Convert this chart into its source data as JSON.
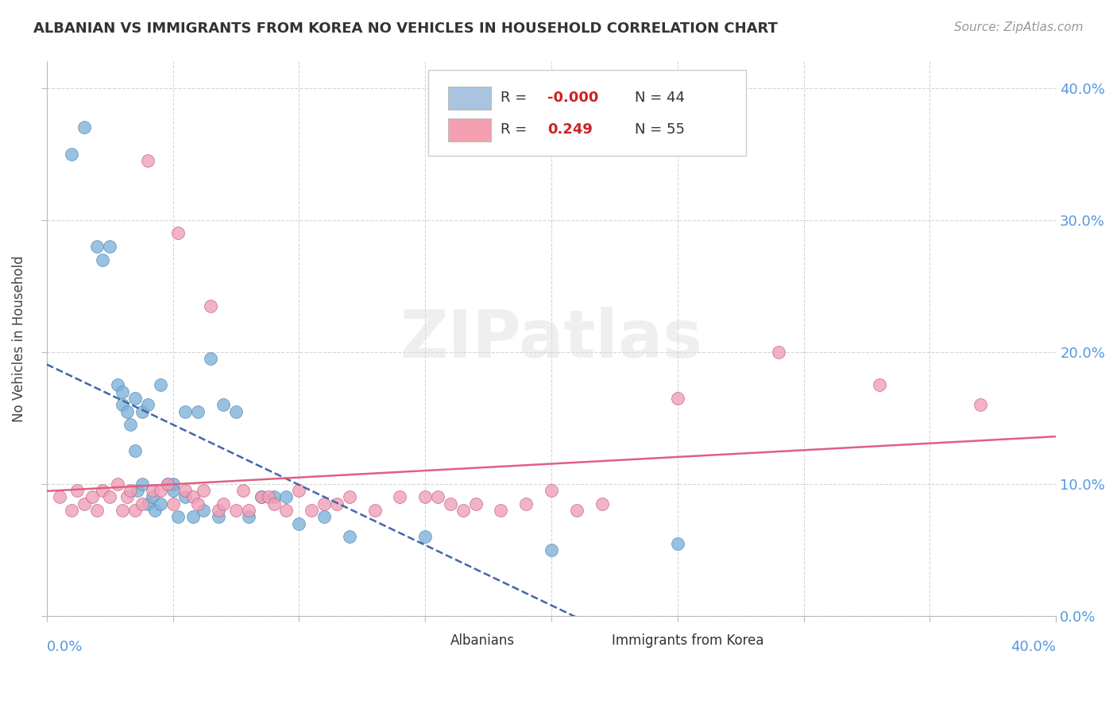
{
  "title": "ALBANIAN VS IMMIGRANTS FROM KOREA NO VEHICLES IN HOUSEHOLD CORRELATION CHART",
  "source": "Source: ZipAtlas.com",
  "ylabel": "No Vehicles in Household",
  "xlim": [
    0.0,
    0.4
  ],
  "ylim": [
    0.0,
    0.42
  ],
  "legend_entries": [
    {
      "label_r": "-0.000",
      "label_n": "N = 44",
      "color": "#a8c4e0"
    },
    {
      "label_r": "0.249",
      "label_n": "N = 55",
      "color": "#f4a0b0"
    }
  ],
  "albanians": {
    "color": "#7eb3d8",
    "edge_color": "#5588bb",
    "x": [
      0.01,
      0.015,
      0.02,
      0.022,
      0.025,
      0.028,
      0.03,
      0.03,
      0.032,
      0.033,
      0.035,
      0.035,
      0.036,
      0.038,
      0.038,
      0.04,
      0.04,
      0.042,
      0.043,
      0.045,
      0.045,
      0.048,
      0.05,
      0.05,
      0.052,
      0.055,
      0.055,
      0.058,
      0.06,
      0.062,
      0.065,
      0.068,
      0.07,
      0.075,
      0.08,
      0.085,
      0.09,
      0.095,
      0.1,
      0.11,
      0.12,
      0.15,
      0.2,
      0.25
    ],
    "y": [
      0.35,
      0.37,
      0.28,
      0.27,
      0.28,
      0.175,
      0.16,
      0.17,
      0.155,
      0.145,
      0.165,
      0.125,
      0.095,
      0.155,
      0.1,
      0.16,
      0.085,
      0.09,
      0.08,
      0.175,
      0.085,
      0.1,
      0.1,
      0.095,
      0.075,
      0.155,
      0.09,
      0.075,
      0.155,
      0.08,
      0.195,
      0.075,
      0.16,
      0.155,
      0.075,
      0.09,
      0.09,
      0.09,
      0.07,
      0.075,
      0.06,
      0.06,
      0.05,
      0.055
    ],
    "line_color": "#4466aa"
  },
  "korea": {
    "color": "#f0a0b8",
    "edge_color": "#c06080",
    "x": [
      0.005,
      0.01,
      0.012,
      0.015,
      0.018,
      0.02,
      0.022,
      0.025,
      0.028,
      0.03,
      0.032,
      0.033,
      0.035,
      0.038,
      0.04,
      0.042,
      0.045,
      0.048,
      0.05,
      0.052,
      0.055,
      0.058,
      0.06,
      0.062,
      0.065,
      0.068,
      0.07,
      0.075,
      0.078,
      0.08,
      0.085,
      0.088,
      0.09,
      0.095,
      0.1,
      0.105,
      0.11,
      0.115,
      0.12,
      0.13,
      0.14,
      0.15,
      0.155,
      0.16,
      0.165,
      0.17,
      0.18,
      0.19,
      0.2,
      0.21,
      0.22,
      0.25,
      0.29,
      0.33,
      0.37
    ],
    "y": [
      0.09,
      0.08,
      0.095,
      0.085,
      0.09,
      0.08,
      0.095,
      0.09,
      0.1,
      0.08,
      0.09,
      0.095,
      0.08,
      0.085,
      0.345,
      0.095,
      0.095,
      0.1,
      0.085,
      0.29,
      0.095,
      0.09,
      0.085,
      0.095,
      0.235,
      0.08,
      0.085,
      0.08,
      0.095,
      0.08,
      0.09,
      0.09,
      0.085,
      0.08,
      0.095,
      0.08,
      0.085,
      0.085,
      0.09,
      0.08,
      0.09,
      0.09,
      0.09,
      0.085,
      0.08,
      0.085,
      0.08,
      0.085,
      0.095,
      0.08,
      0.085,
      0.165,
      0.2,
      0.175,
      0.16
    ],
    "line_color": "#e06080"
  },
  "watermark": "ZIPatlas",
  "background_color": "#ffffff",
  "grid_color": "#cccccc",
  "tick_color": "#5599dd",
  "yticks": [
    0.0,
    0.1,
    0.2,
    0.3,
    0.4
  ],
  "xticks": [
    0.0,
    0.05,
    0.1,
    0.15,
    0.2,
    0.25,
    0.3,
    0.35,
    0.4
  ]
}
